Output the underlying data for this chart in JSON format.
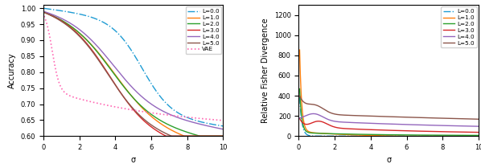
{
  "left_ylabel": "Accuracy",
  "right_ylabel": "Relative Fisher Divergence",
  "xlabel": "σ",
  "legend_labels": [
    "L=0.0",
    "L=1.0",
    "L=2.0",
    "L=3.0",
    "L=4.0",
    "L=5.0"
  ],
  "left_legend_extra": "VAE",
  "left_colors": [
    "#1f9cd4",
    "#ff7f0e",
    "#2ca02c",
    "#d62728",
    "#9467bd",
    "#8c564b"
  ],
  "right_colors": [
    "#1f9cd4",
    "#ff7f0e",
    "#2ca02c",
    "#d62728",
    "#9467bd",
    "#8c564b"
  ],
  "left_vae_color": "#ff69b4",
  "left_ylim": [
    0.6,
    1.01
  ],
  "right_ylim": [
    0,
    1300
  ],
  "xlim": [
    0,
    10
  ]
}
